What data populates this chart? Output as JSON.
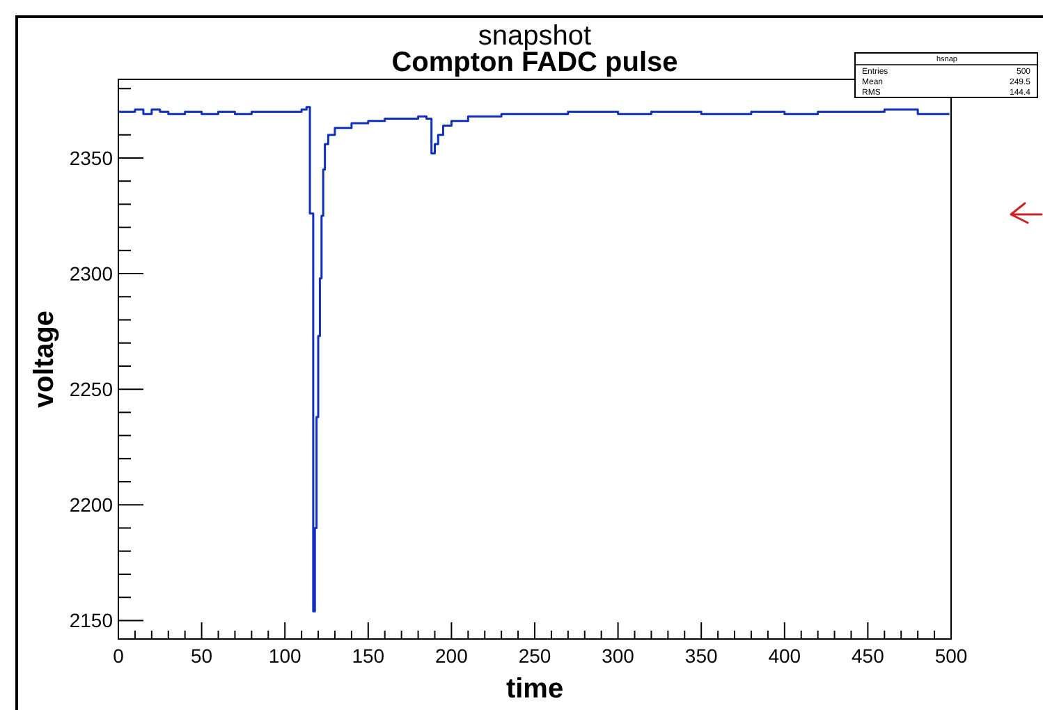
{
  "chart_data": {
    "type": "step",
    "title": "snapshot",
    "subtitle": "Compton FADC pulse",
    "xlabel": "time",
    "ylabel": "voltage",
    "annotations": [
      "hsnap",
      "Entries",
      "500",
      "Mean",
      "249.5",
      "RMS",
      "144.4"
    ],
    "xlim": [
      0,
      500
    ],
    "ylim": [
      2142,
      2384
    ],
    "xticks": [
      0,
      {
        "value": 10,
        "label": null
      },
      {
        "value": 20,
        "label": null
      },
      {
        "value": 30,
        "label": null
      },
      {
        "value": 40,
        "label": null
      },
      50,
      {
        "value": 60,
        "label": null
      },
      {
        "value": 70,
        "label": null
      },
      {
        "value": 80,
        "label": null
      },
      {
        "value": 90,
        "label": null
      },
      100,
      {
        "value": 110,
        "label": null
      },
      {
        "value": 120,
        "label": null
      },
      {
        "value": 130,
        "label": null
      },
      {
        "value": 140,
        "label": null
      },
      150,
      {
        "value": 160,
        "label": null
      },
      {
        "value": 170,
        "label": null
      },
      {
        "value": 180,
        "label": null
      },
      {
        "value": 190,
        "label": null
      },
      200,
      {
        "value": 210,
        "label": null
      },
      {
        "value": 220,
        "label": null
      },
      {
        "value": 230,
        "label": null
      },
      {
        "value": 240,
        "label": null
      },
      250,
      {
        "value": 260,
        "label": null
      },
      {
        "value": 270,
        "label": null
      },
      {
        "value": 280,
        "label": null
      },
      {
        "value": 290,
        "label": null
      },
      300,
      {
        "value": 310,
        "label": null
      },
      {
        "value": 320,
        "label": null
      },
      {
        "value": 330,
        "label": null
      },
      {
        "value": 340,
        "label": null
      },
      350,
      {
        "value": 360,
        "label": null
      },
      {
        "value": 370,
        "label": null
      },
      {
        "value": 380,
        "label": null
      },
      {
        "value": 390,
        "label": null
      },
      400,
      {
        "value": 410,
        "label": null
      },
      {
        "value": 420,
        "label": null
      },
      {
        "value": 430,
        "label": null
      },
      {
        "value": 440,
        "label": null
      },
      450,
      {
        "value": 460,
        "label": null
      },
      {
        "value": 470,
        "label": null
      },
      {
        "value": 480,
        "label": null
      },
      {
        "value": 490,
        "label": null
      },
      500
    ],
    "yticks": [
      2150,
      {
        "value": 2160,
        "label": null
      },
      {
        "value": 2170,
        "label": null
      },
      {
        "value": 2180,
        "label": null
      },
      {
        "value": 2190,
        "label": null
      },
      2200,
      {
        "value": 2210,
        "label": null
      },
      {
        "value": 2220,
        "label": null
      },
      {
        "value": 2230,
        "label": null
      },
      {
        "value": 2240,
        "label": null
      },
      2250,
      {
        "value": 2260,
        "label": null
      },
      {
        "value": 2270,
        "label": null
      },
      {
        "value": 2280,
        "label": null
      },
      {
        "value": 2290,
        "label": null
      },
      2300,
      {
        "value": 2310,
        "label": null
      },
      {
        "value": 2320,
        "label": null
      },
      {
        "value": 2330,
        "label": null
      },
      {
        "value": 2340,
        "label": null
      },
      2350,
      {
        "value": 2360,
        "label": null
      },
      {
        "value": 2370,
        "label": null
      },
      {
        "value": 2380,
        "label": null
      }
    ],
    "series": [
      {
        "color": "#1030c0",
        "x": [
          0,
          5,
          10,
          15,
          20,
          25,
          30,
          40,
          50,
          60,
          70,
          80,
          90,
          100,
          110,
          113,
          115,
          117,
          118,
          119,
          120,
          121,
          122,
          123,
          124,
          126,
          130,
          140,
          150,
          160,
          170,
          180,
          185,
          188,
          190,
          192,
          195,
          200,
          210,
          220,
          230,
          250,
          270,
          300,
          320,
          350,
          380,
          400,
          420,
          440,
          460,
          480,
          499
        ],
        "values": [
          2370,
          2370,
          2371,
          2369,
          2371,
          2370,
          2369,
          2370,
          2369,
          2370,
          2369,
          2370,
          2370,
          2370,
          2371,
          2372,
          2326,
          2154,
          2190,
          2238,
          2273,
          2298,
          2325,
          2345,
          2356,
          2360,
          2363,
          2365,
          2366,
          2367,
          2367,
          2368,
          2367,
          2352,
          2356,
          2360,
          2364,
          2366,
          2368,
          2368,
          2369,
          2369,
          2370,
          2369,
          2370,
          2369,
          2370,
          2369,
          2370,
          2370,
          2371,
          2369,
          2369
        ]
      }
    ]
  }
}
